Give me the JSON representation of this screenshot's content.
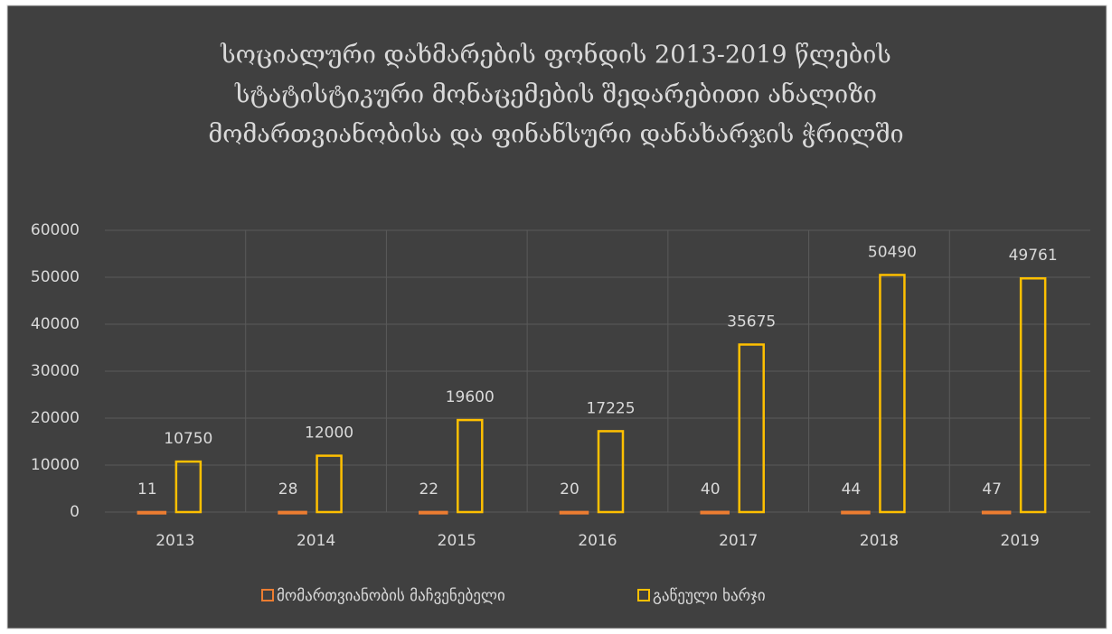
{
  "chart_data": {
    "type": "bar",
    "title": [
      "სოციალური დახმარების ფონდის 2013-2019 წლების",
      "სტატისტიკური მონაცემების შედარებითი ანალიზი",
      "მომართვიანობისა და ფინანსური დანახარჯის ჭრილში"
    ],
    "categories": [
      "2013",
      "2014",
      "2015",
      "2016",
      "2017",
      "2018",
      "2019"
    ],
    "series": [
      {
        "name": "მომართვიანობის მაჩვენებელი",
        "color": "#ed7d31",
        "values": [
          11,
          28,
          22,
          20,
          40,
          44,
          47
        ]
      },
      {
        "name": "გაწეული ხარჯი",
        "color": "#ffc000",
        "values": [
          10750,
          12000,
          19600,
          17225,
          35675,
          50490,
          49761
        ]
      }
    ],
    "ylim": [
      0,
      60000
    ],
    "yticks": [
      0,
      10000,
      20000,
      30000,
      40000,
      50000,
      60000
    ],
    "grid": true,
    "legend": "bottom"
  }
}
